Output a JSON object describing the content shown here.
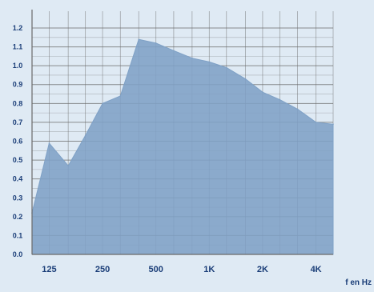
{
  "chart_data": {
    "type": "area",
    "title": "",
    "xlabel": "f en Hz",
    "ylabel": "",
    "x_scale": "log",
    "grid": true,
    "legend": "none",
    "ylim": [
      0,
      1.2
    ],
    "y_ticks": [
      0.0,
      0.1,
      0.2,
      0.3,
      0.4,
      0.5,
      0.6,
      0.7,
      0.8,
      0.9,
      1.0,
      1.1,
      1.2
    ],
    "y_tick_labels": [
      "0.0",
      "0.1",
      "0.2",
      "0.3",
      "0.4",
      "0.5",
      "0.6",
      "0.7",
      "0.8",
      "0.9",
      "1.0",
      "1.1",
      "1.2"
    ],
    "x_ticks": [
      {
        "label": "125",
        "value": 125
      },
      {
        "label": "250",
        "value": 250
      },
      {
        "label": "500",
        "value": 500
      },
      {
        "label": "1K",
        "value": 1000
      },
      {
        "label": "2K",
        "value": 2000
      },
      {
        "label": "4K",
        "value": 4000
      }
    ],
    "series": [
      {
        "fill_color": "#7fa1c6",
        "points": [
          {
            "x": 100,
            "y": 0.22
          },
          {
            "x": 125,
            "y": 0.59
          },
          {
            "x": 160,
            "y": 0.47
          },
          {
            "x": 200,
            "y": 0.63
          },
          {
            "x": 250,
            "y": 0.8
          },
          {
            "x": 315,
            "y": 0.84
          },
          {
            "x": 400,
            "y": 1.14
          },
          {
            "x": 500,
            "y": 1.12
          },
          {
            "x": 630,
            "y": 1.08
          },
          {
            "x": 800,
            "y": 1.04
          },
          {
            "x": 1000,
            "y": 1.02
          },
          {
            "x": 1250,
            "y": 0.99
          },
          {
            "x": 1600,
            "y": 0.93
          },
          {
            "x": 2000,
            "y": 0.86
          },
          {
            "x": 2500,
            "y": 0.82
          },
          {
            "x": 3150,
            "y": 0.77
          },
          {
            "x": 4000,
            "y": 0.7
          },
          {
            "x": 5000,
            "y": 0.69
          }
        ]
      }
    ],
    "colors": {
      "background": "#dfeaf4",
      "grid": "#6a6a6a",
      "area": "#7fa1c6",
      "label": "#1b3e78"
    }
  }
}
